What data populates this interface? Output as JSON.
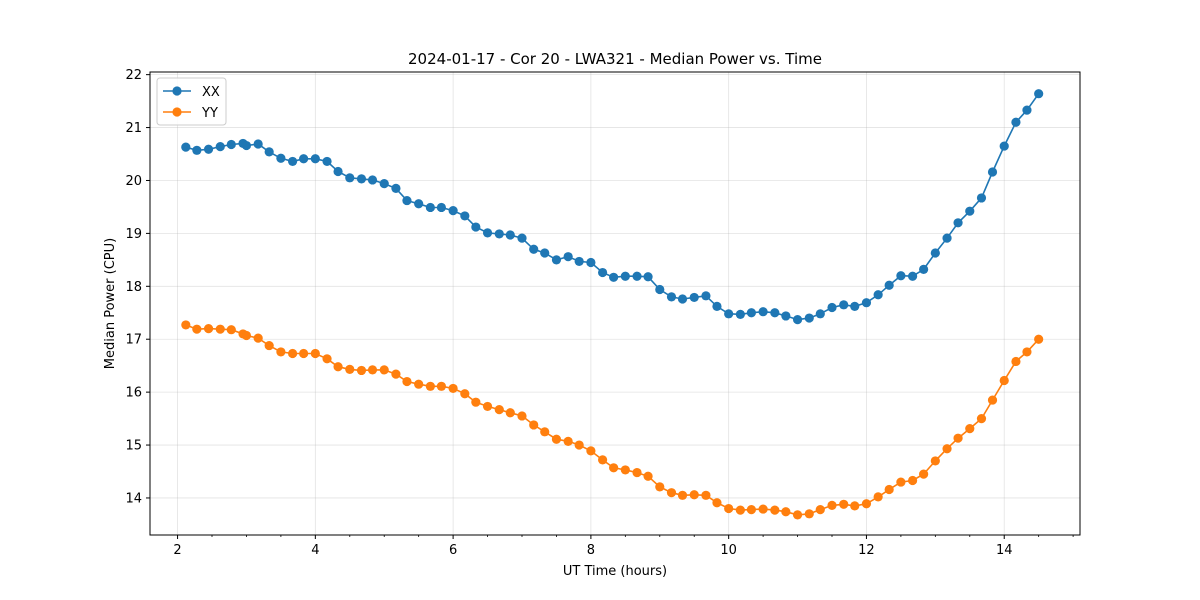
{
  "chart_data": {
    "type": "line",
    "title": "2024-01-17 - Cor 20 - LWA321 - Median Power vs. Time",
    "xlabel": "UT Time (hours)",
    "ylabel": "Median Power (CPU)",
    "xlim": [
      1.6,
      15.1
    ],
    "ylim": [
      13.3,
      22.05
    ],
    "xticks": [
      2,
      4,
      6,
      8,
      10,
      12,
      14
    ],
    "yticks": [
      14,
      15,
      16,
      17,
      18,
      19,
      20,
      21,
      22
    ],
    "grid": true,
    "legend_position": "top-left",
    "x": [
      2.12,
      2.28,
      2.45,
      2.62,
      2.78,
      2.95,
      3.0,
      3.17,
      3.33,
      3.5,
      3.67,
      3.83,
      4.0,
      4.17,
      4.33,
      4.5,
      4.67,
      4.83,
      5.0,
      5.17,
      5.33,
      5.5,
      5.67,
      5.83,
      6.0,
      6.17,
      6.33,
      6.5,
      6.67,
      6.83,
      7.0,
      7.17,
      7.33,
      7.5,
      7.67,
      7.83,
      8.0,
      8.17,
      8.33,
      8.5,
      8.67,
      8.83,
      9.0,
      9.17,
      9.33,
      9.5,
      9.67,
      9.83,
      10.0,
      10.17,
      10.33,
      10.5,
      10.67,
      10.83,
      11.0,
      11.17,
      11.33,
      11.5,
      11.67,
      11.83,
      12.0,
      12.17,
      12.33,
      12.5,
      12.67,
      12.83,
      13.0,
      13.17,
      13.33,
      13.5,
      13.67,
      13.83,
      14.0,
      14.17,
      14.33,
      14.5
    ],
    "series": [
      {
        "name": "XX",
        "color": "#1f77b4",
        "values": [
          20.63,
          20.57,
          20.59,
          20.64,
          20.68,
          20.7,
          20.66,
          20.69,
          20.54,
          20.42,
          20.36,
          20.41,
          20.41,
          20.36,
          20.17,
          20.05,
          20.03,
          20.01,
          19.94,
          19.85,
          19.62,
          19.56,
          19.49,
          19.49,
          19.43,
          19.33,
          19.12,
          19.01,
          18.99,
          18.97,
          18.91,
          18.7,
          18.63,
          18.5,
          18.56,
          18.47,
          18.45,
          18.26,
          18.17,
          18.19,
          18.19,
          18.18,
          17.94,
          17.8,
          17.76,
          17.79,
          17.82,
          17.62,
          17.48,
          17.47,
          17.5,
          17.52,
          17.5,
          17.44,
          17.37,
          17.4,
          17.48,
          17.6,
          17.65,
          17.62,
          17.69,
          17.84,
          18.02,
          18.2,
          18.19,
          18.32,
          18.63,
          18.91,
          19.2,
          19.42,
          19.67,
          20.16,
          20.65,
          21.1,
          21.33,
          21.64
        ]
      },
      {
        "name": "YY",
        "color": "#ff7f0e",
        "values": [
          17.27,
          17.19,
          17.2,
          17.19,
          17.18,
          17.1,
          17.07,
          17.02,
          16.88,
          16.76,
          16.73,
          16.73,
          16.73,
          16.63,
          16.48,
          16.43,
          16.41,
          16.42,
          16.42,
          16.34,
          16.2,
          16.15,
          16.11,
          16.11,
          16.07,
          15.97,
          15.81,
          15.73,
          15.67,
          15.61,
          15.55,
          15.38,
          15.25,
          15.11,
          15.07,
          15.0,
          14.89,
          14.72,
          14.57,
          14.53,
          14.48,
          14.41,
          14.21,
          14.1,
          14.05,
          14.06,
          14.05,
          13.91,
          13.8,
          13.77,
          13.78,
          13.79,
          13.77,
          13.74,
          13.68,
          13.7,
          13.78,
          13.86,
          13.88,
          13.85,
          13.89,
          14.02,
          14.16,
          14.3,
          14.33,
          14.45,
          14.7,
          14.93,
          15.13,
          15.31,
          15.5,
          15.85,
          16.22,
          16.58,
          16.76,
          17.0
        ]
      }
    ]
  }
}
